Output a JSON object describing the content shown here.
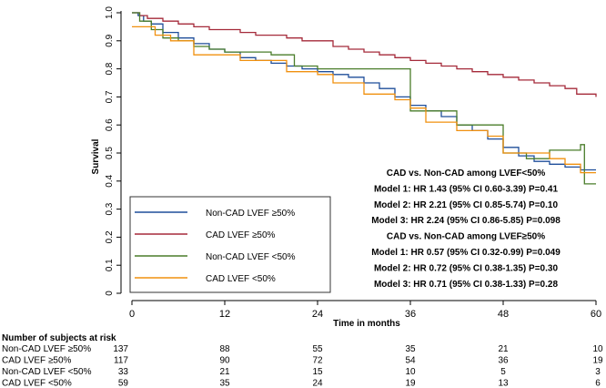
{
  "chart_data": {
    "type": "line",
    "subtype": "kaplan-meier",
    "xlabel": "Time in months",
    "ylabel": "Survival",
    "xlim": [
      0,
      60
    ],
    "ylim": [
      0,
      1.0
    ],
    "xticks": [
      0,
      12,
      24,
      36,
      48,
      60
    ],
    "yticks": [
      0,
      0.1,
      0.2,
      0.3,
      0.4,
      0.5,
      0.6,
      0.7,
      0.8,
      0.9,
      1.0
    ],
    "ytick_labels": [
      "0",
      "0.1",
      "0.2",
      "0.3",
      "0.4",
      "0.5",
      "0.6",
      "0.7",
      "0.8",
      "0.9",
      "1.0"
    ],
    "grid": false,
    "series": [
      {
        "name": "Non-CAD LVEF ≥50%",
        "color": "#1f4e9a",
        "points": [
          [
            0,
            1.0
          ],
          [
            0.8,
            0.99
          ],
          [
            1.5,
            0.97
          ],
          [
            2.5,
            0.96
          ],
          [
            4,
            0.93
          ],
          [
            6,
            0.91
          ],
          [
            8,
            0.89
          ],
          [
            10,
            0.87
          ],
          [
            12,
            0.86
          ],
          [
            14,
            0.84
          ],
          [
            16,
            0.83
          ],
          [
            18,
            0.82
          ],
          [
            20,
            0.81
          ],
          [
            22,
            0.8
          ],
          [
            24,
            0.79
          ],
          [
            26,
            0.78
          ],
          [
            28,
            0.77
          ],
          [
            30,
            0.75
          ],
          [
            32,
            0.73
          ],
          [
            34,
            0.7
          ],
          [
            36,
            0.67
          ],
          [
            38,
            0.65
          ],
          [
            40,
            0.63
          ],
          [
            42,
            0.6
          ],
          [
            44,
            0.58
          ],
          [
            46,
            0.55
          ],
          [
            48,
            0.52
          ],
          [
            50,
            0.49
          ],
          [
            52,
            0.47
          ],
          [
            54,
            0.46
          ],
          [
            56,
            0.45
          ],
          [
            58,
            0.44
          ],
          [
            60,
            0.44
          ]
        ]
      },
      {
        "name": "CAD LVEF ≥50%",
        "color": "#a52a3a",
        "points": [
          [
            0,
            1.0
          ],
          [
            1,
            0.99
          ],
          [
            2,
            0.98
          ],
          [
            4,
            0.97
          ],
          [
            6,
            0.96
          ],
          [
            8,
            0.95
          ],
          [
            10,
            0.94
          ],
          [
            12,
            0.94
          ],
          [
            14,
            0.93
          ],
          [
            16,
            0.92
          ],
          [
            18,
            0.92
          ],
          [
            20,
            0.91
          ],
          [
            22,
            0.9
          ],
          [
            24,
            0.9
          ],
          [
            26,
            0.88
          ],
          [
            28,
            0.87
          ],
          [
            30,
            0.86
          ],
          [
            32,
            0.85
          ],
          [
            34,
            0.84
          ],
          [
            36,
            0.83
          ],
          [
            38,
            0.82
          ],
          [
            40,
            0.81
          ],
          [
            42,
            0.8
          ],
          [
            44,
            0.79
          ],
          [
            46,
            0.78
          ],
          [
            48,
            0.77
          ],
          [
            50,
            0.76
          ],
          [
            52,
            0.75
          ],
          [
            54,
            0.74
          ],
          [
            56,
            0.73
          ],
          [
            57.5,
            0.71
          ],
          [
            60,
            0.7
          ]
        ]
      },
      {
        "name": "Non-CAD LVEF <50%",
        "color": "#4a7d2a",
        "points": [
          [
            0,
            1.0
          ],
          [
            1,
            0.97
          ],
          [
            2.5,
            0.94
          ],
          [
            4,
            0.91
          ],
          [
            6,
            0.9
          ],
          [
            8,
            0.88
          ],
          [
            10,
            0.87
          ],
          [
            12,
            0.86
          ],
          [
            18,
            0.85
          ],
          [
            21,
            0.81
          ],
          [
            24,
            0.8
          ],
          [
            30,
            0.8
          ],
          [
            36,
            0.65
          ],
          [
            42,
            0.6
          ],
          [
            48,
            0.5
          ],
          [
            51,
            0.48
          ],
          [
            54,
            0.51
          ],
          [
            58,
            0.53
          ],
          [
            58.5,
            0.39
          ],
          [
            60,
            0.39
          ]
        ]
      },
      {
        "name": "CAD LVEF <50%",
        "color": "#f0900f",
        "points": [
          [
            0,
            0.95
          ],
          [
            2,
            0.95
          ],
          [
            3,
            0.92
          ],
          [
            5,
            0.9
          ],
          [
            8,
            0.85
          ],
          [
            12,
            0.85
          ],
          [
            14,
            0.83
          ],
          [
            18,
            0.83
          ],
          [
            20,
            0.79
          ],
          [
            24,
            0.78
          ],
          [
            26,
            0.75
          ],
          [
            30,
            0.71
          ],
          [
            34,
            0.69
          ],
          [
            36,
            0.66
          ],
          [
            38,
            0.61
          ],
          [
            42,
            0.58
          ],
          [
            46,
            0.56
          ],
          [
            48,
            0.5
          ],
          [
            52,
            0.5
          ],
          [
            54,
            0.48
          ],
          [
            56,
            0.46
          ],
          [
            58,
            0.43
          ],
          [
            60,
            0.43
          ]
        ]
      }
    ],
    "annotations": [
      "CAD vs. Non-CAD among LVEF<50%",
      "Model 1: HR 1.43 (95% CI 0.60-3.39) P=0.41",
      "Model 2: HR 2.21 (95% CI 0.85-5.74) P=0.10",
      "Model 3: HR 2.24 (95% CI 0.86-5.85) P=0.098",
      "CAD vs. Non-CAD among LVEF≥50%",
      "Model 1: HR 0.57 (95% CI 0.32-0.99) P=0.049",
      "Model 2: HR 0.72 (95% CI 0.38-1.35) P=0.30",
      "Model 3: HR 0.71 (95% CI 0.38-1.33) P=0.28"
    ],
    "legend_position": "lower-left",
    "risk_table": {
      "title": "Number of subjects at risk",
      "times": [
        0,
        12,
        24,
        36,
        48,
        60
      ],
      "rows": [
        {
          "label": "Non-CAD LVEF ≥50%",
          "values": [
            137,
            88,
            55,
            35,
            21,
            10
          ]
        },
        {
          "label": "CAD LVEF ≥50%",
          "values": [
            117,
            90,
            72,
            54,
            36,
            19
          ]
        },
        {
          "label": "Non-CAD LVEF <50%",
          "values": [
            33,
            21,
            15,
            10,
            5,
            3
          ]
        },
        {
          "label": "CAD LVEF <50%",
          "values": [
            59,
            35,
            24,
            19,
            13,
            6
          ]
        }
      ]
    }
  }
}
